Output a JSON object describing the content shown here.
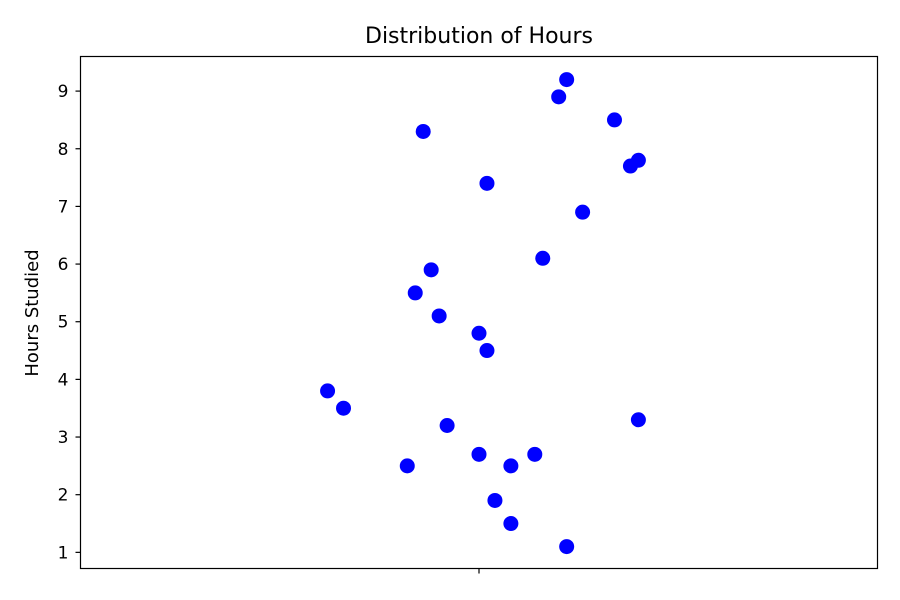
{
  "chart_data": {
    "type": "scatter",
    "title": "Distribution of Hours",
    "xlabel": "",
    "ylabel": "Hours Studied",
    "ylim": [
      0.72,
      9.6
    ],
    "xlim": [
      -0.5,
      0.5
    ],
    "yticks": [
      1,
      2,
      3,
      4,
      5,
      6,
      7,
      8,
      9
    ],
    "xticks": [
      0
    ],
    "xtick_labels": [
      ""
    ],
    "grid": false,
    "legend": "none",
    "marker_color": "#0000ff",
    "points": [
      {
        "x": 0.11,
        "y": 9.2
      },
      {
        "x": 0.1,
        "y": 8.9
      },
      {
        "x": 0.17,
        "y": 8.5
      },
      {
        "x": -0.07,
        "y": 8.3
      },
      {
        "x": 0.2,
        "y": 7.8
      },
      {
        "x": 0.19,
        "y": 7.7
      },
      {
        "x": 0.01,
        "y": 7.4
      },
      {
        "x": 0.13,
        "y": 6.9
      },
      {
        "x": 0.08,
        "y": 6.1
      },
      {
        "x": -0.06,
        "y": 5.9
      },
      {
        "x": -0.08,
        "y": 5.5
      },
      {
        "x": -0.05,
        "y": 5.1
      },
      {
        "x": 0.0,
        "y": 4.8
      },
      {
        "x": 0.01,
        "y": 4.5
      },
      {
        "x": -0.19,
        "y": 3.8
      },
      {
        "x": -0.17,
        "y": 3.5
      },
      {
        "x": 0.2,
        "y": 3.3
      },
      {
        "x": -0.04,
        "y": 3.2
      },
      {
        "x": 0.0,
        "y": 2.7
      },
      {
        "x": 0.07,
        "y": 2.7
      },
      {
        "x": -0.09,
        "y": 2.5
      },
      {
        "x": 0.04,
        "y": 2.5
      },
      {
        "x": 0.02,
        "y": 1.9
      },
      {
        "x": 0.04,
        "y": 1.5
      },
      {
        "x": 0.11,
        "y": 1.1
      }
    ]
  }
}
